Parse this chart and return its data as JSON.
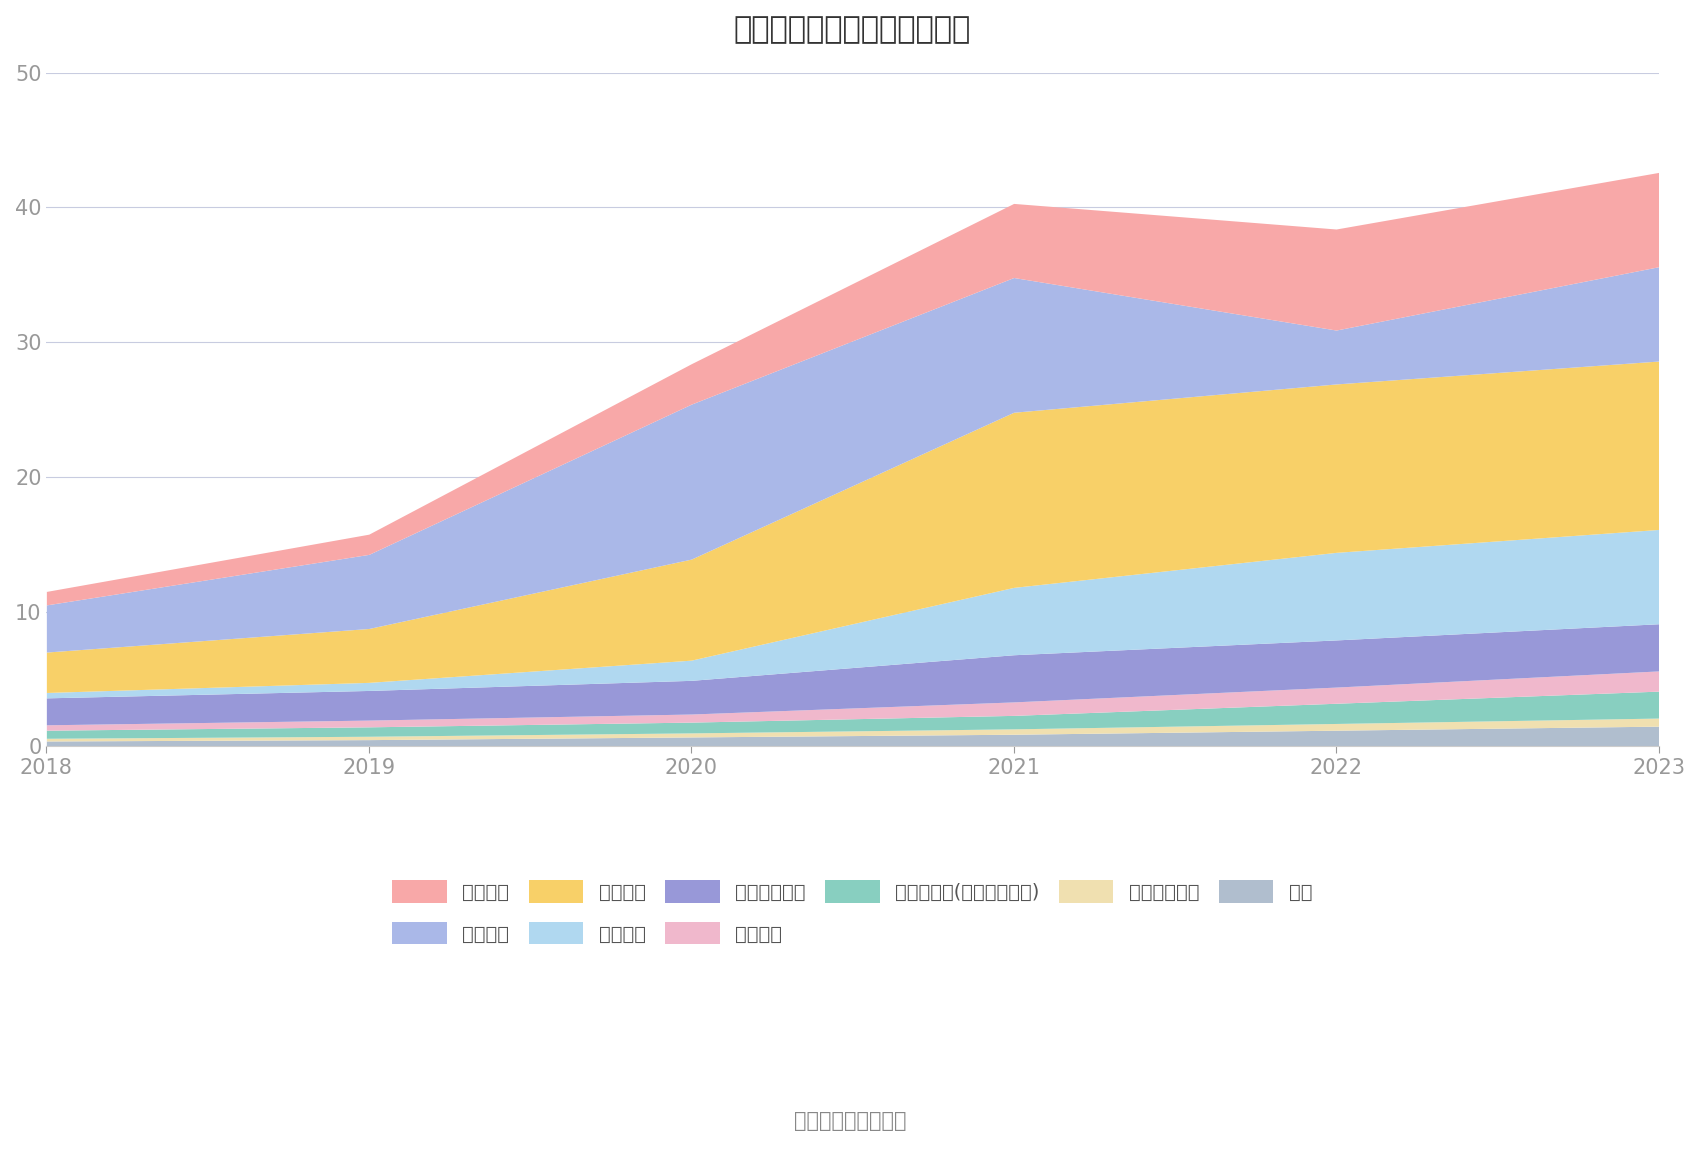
{
  "title": "历年主要负债堆积图（亿元）",
  "years": [
    2018,
    2019,
    2020,
    2021,
    2022,
    2023
  ],
  "series": [
    {
      "name": "其它",
      "color": "#b0bece",
      "values": [
        0.4,
        0.5,
        0.7,
        0.9,
        1.2,
        1.5
      ]
    },
    {
      "name": "长期递延收益",
      "color": "#f0e0b0",
      "values": [
        0.2,
        0.25,
        0.3,
        0.4,
        0.5,
        0.6
      ]
    },
    {
      "name": "其他应付款(含利息和股利)",
      "color": "#88cfc0",
      "values": [
        0.6,
        0.7,
        0.8,
        1.0,
        1.5,
        2.0
      ]
    },
    {
      "name": "应交税费",
      "color": "#f0b8cc",
      "values": [
        0.4,
        0.5,
        0.6,
        1.0,
        1.2,
        1.5
      ]
    },
    {
      "name": "应付职工薪酬",
      "color": "#9898d8",
      "values": [
        2.0,
        2.2,
        2.5,
        3.5,
        3.5,
        3.5
      ]
    },
    {
      "name": "合同负债",
      "color": "#b0d8f0",
      "values": [
        0.4,
        0.6,
        1.5,
        5.0,
        6.5,
        7.0
      ]
    },
    {
      "name": "应付账款",
      "color": "#f8d068",
      "values": [
        3.0,
        4.0,
        7.5,
        13.0,
        12.5,
        12.5
      ]
    },
    {
      "name": "应付票据",
      "color": "#aab8e8",
      "values": [
        3.5,
        5.5,
        11.5,
        10.0,
        4.0,
        7.0
      ]
    },
    {
      "name": "短期借款",
      "color": "#f8a8a8",
      "values": [
        1.0,
        1.5,
        3.0,
        5.5,
        7.5,
        7.0
      ]
    }
  ],
  "ylim": [
    0,
    50
  ],
  "yticks": [
    0,
    10,
    20,
    30,
    40,
    50
  ],
  "bg_color": "#ffffff",
  "grid_color": "#c8cce0",
  "source_text": "数据来源：恒生聚源",
  "title_fontsize": 22,
  "tick_fontsize": 15,
  "legend_fontsize": 14,
  "source_fontsize": 15,
  "legend_order": [
    8,
    7,
    6,
    5,
    4,
    3,
    2,
    1,
    0
  ]
}
